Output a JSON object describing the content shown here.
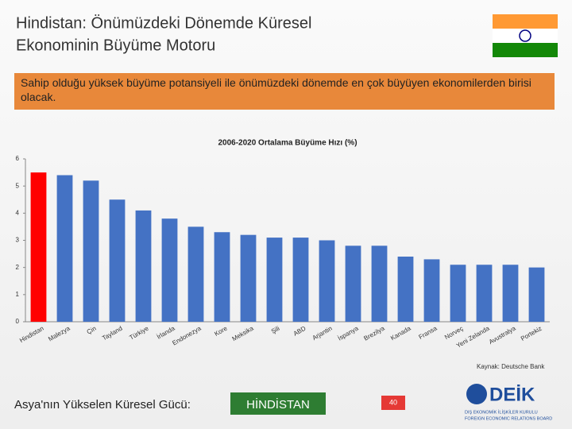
{
  "header": {
    "title_lines": [
      "Hindistan: Önümüzdeki Dönemde Küresel",
      "Ekonominin Büyüme Motoru"
    ]
  },
  "banner": {
    "text": "Sahip olduğu yüksek büyüme potansiyeli ile önümüzdeki dönemde en çok büyüyen ekonomilerden birisi olacak."
  },
  "chart_data": {
    "type": "bar",
    "title": "2006-2020 Ortalama Büyüme Hızı (%)",
    "categories": [
      "Hindistan",
      "Malezya",
      "Çin",
      "Tayland",
      "Türkiye",
      "İrlanda",
      "Endonezya",
      "Kore",
      "Meksika",
      "Şili",
      "ABD",
      "Arjantin",
      "İspanya",
      "Brezilya",
      "Kanada",
      "Fransa",
      "Norveç",
      "Yeni Zelanda",
      "Avustralya",
      "Portekiz"
    ],
    "values": [
      5.5,
      5.4,
      5.2,
      4.5,
      4.1,
      3.8,
      3.5,
      3.3,
      3.2,
      3.1,
      3.1,
      3.0,
      2.8,
      2.8,
      2.4,
      2.3,
      2.1,
      2.1,
      2.1,
      2.0
    ],
    "colors": [
      "#ff0000",
      "#4472c4",
      "#4472c4",
      "#4472c4",
      "#4472c4",
      "#4472c4",
      "#4472c4",
      "#4472c4",
      "#4472c4",
      "#4472c4",
      "#4472c4",
      "#4472c4",
      "#4472c4",
      "#4472c4",
      "#4472c4",
      "#4472c4",
      "#4472c4",
      "#4472c4",
      "#4472c4",
      "#4472c4"
    ],
    "ylim": [
      0,
      6
    ],
    "yticks": [
      0,
      1,
      2,
      3,
      4,
      5,
      6
    ],
    "grid": false
  },
  "footer": {
    "source": "Kaynak: Deutsche Bank",
    "slogan": "Asya'nın Yükselen Küresel Gücü:",
    "highlight": "HİNDİSTAN",
    "page": "40",
    "logo": {
      "name": "DEİK",
      "line1": "DIŞ EKONOMİK İLİŞKİLER KURULU",
      "line2": "FOREIGN ECONOMIC RELATIONS BOARD"
    }
  }
}
